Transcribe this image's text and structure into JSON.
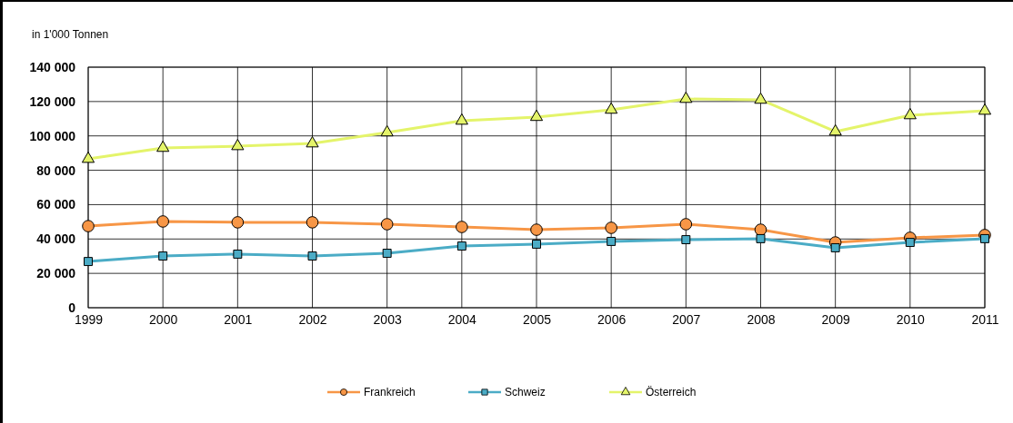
{
  "chart_data": {
    "type": "line",
    "ylabel": "in 1'000 Tonnen",
    "x": [
      1999,
      2000,
      2001,
      2002,
      2003,
      2004,
      2005,
      2006,
      2007,
      2008,
      2009,
      2010,
      2011
    ],
    "xlim": [
      1999,
      2011
    ],
    "xticks": [
      1999,
      2000,
      2001,
      2002,
      2003,
      2004,
      2005,
      2006,
      2007,
      2008,
      2009,
      2010,
      2011
    ],
    "ylim": [
      0,
      140000
    ],
    "yticks": [
      {
        "value": 0,
        "label": "0"
      },
      {
        "value": 20000,
        "label": "20 000"
      },
      {
        "value": 40000,
        "label": "40 000"
      },
      {
        "value": 60000,
        "label": "60 000"
      },
      {
        "value": 80000,
        "label": "80 000"
      },
      {
        "value": 100000,
        "label": "100 000"
      },
      {
        "value": 120000,
        "label": "120 000"
      },
      {
        "value": 140000,
        "label": "140 000"
      }
    ],
    "grid": true,
    "legend": "bottom",
    "line_style": "solid",
    "series": [
      {
        "name": "Frankreich",
        "color": "#f79646",
        "marker": "circle",
        "values": [
          47500,
          50200,
          49700,
          49700,
          48600,
          47000,
          45400,
          46500,
          48600,
          45400,
          38000,
          40700,
          42300
        ]
      },
      {
        "name": "Schweiz",
        "color": "#4bacc6",
        "marker": "square",
        "values": [
          26900,
          30100,
          31200,
          30100,
          31700,
          35900,
          37000,
          38600,
          39600,
          40200,
          34900,
          38000,
          40200
        ]
      },
      {
        "name": "Österreich",
        "color": "#e4f46a",
        "marker": "triangle",
        "values": [
          86600,
          93000,
          94000,
          95600,
          102000,
          108800,
          111000,
          115200,
          121500,
          121000,
          102500,
          112000,
          114600
        ]
      }
    ]
  }
}
